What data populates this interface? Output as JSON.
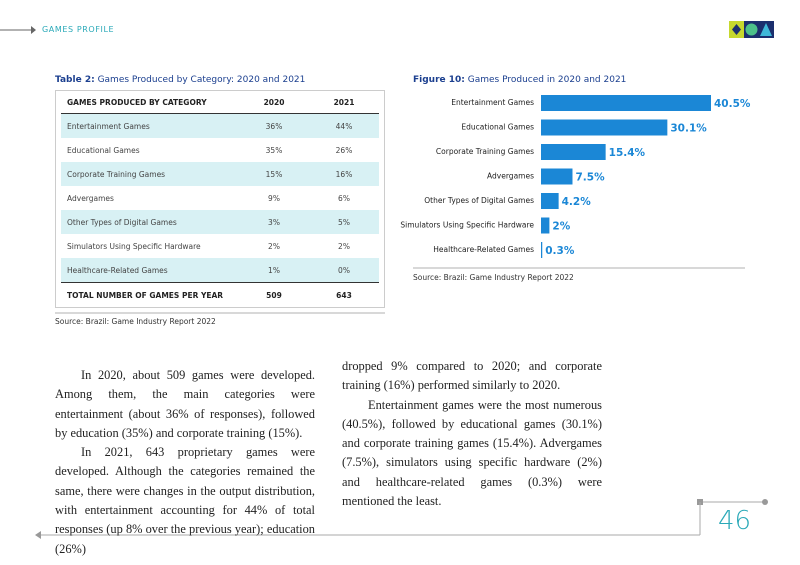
{
  "header": {
    "section": "GAMES PROFILE"
  },
  "table": {
    "label": "Table 2:",
    "title": "Games Produced by Category: 2020 and 2021",
    "columns": [
      "GAMES PRODUCED BY CATEGORY",
      "2020",
      "2021"
    ],
    "rows": [
      [
        "Entertainment Games",
        "36%",
        "44%"
      ],
      [
        "Educational Games",
        "35%",
        "26%"
      ],
      [
        "Corporate Training Games",
        "15%",
        "16%"
      ],
      [
        "Advergames",
        "9%",
        "6%"
      ],
      [
        "Other Types of Digital Games",
        "3%",
        "5%"
      ],
      [
        "Simulators Using Specific Hardware",
        "2%",
        "2%"
      ],
      [
        "Healthcare-Related Games",
        "1%",
        "0%"
      ]
    ],
    "total": [
      "TOTAL NUMBER OF GAMES PER YEAR",
      "509",
      "643"
    ],
    "source": "Source: Brazil: Game Industry Report 2022"
  },
  "chart_data": {
    "type": "bar",
    "orientation": "horizontal",
    "label": "Figure 10:",
    "title": "Games Produced in 2020 and 2021",
    "categories": [
      "Entertainment Games",
      "Educational Games",
      "Corporate Training Games",
      "Advergames",
      "Other Types of Digital Games",
      "Simulators Using Specific Hardware",
      "Healthcare-Related Games"
    ],
    "values": [
      40.5,
      30.1,
      15.4,
      7.5,
      4.2,
      2,
      0.3
    ],
    "value_labels": [
      "40.5%",
      "30.1%",
      "15.4%",
      "7.5%",
      "4.2%",
      "2%",
      "0.3%"
    ],
    "color": "#1b87d6",
    "source": "Source: Brazil: Game Industry Report 2022"
  },
  "body": {
    "left": [
      "In 2020, about 509 games were developed. Among them, the main categories were entertainment (about 36% of responses), followed by education (35%) and corporate training (15%).",
      "In 2021, 643 proprietary games were developed. Although the categories remained the same, there were changes in the output distribution, with entertainment accounting for 44% of total responses (up 8% over the previous year); education (26%)"
    ],
    "right": [
      "dropped 9% compared to 2020; and corporate training (16%) performed similarly to 2020.",
      "Entertainment games were the most numerous (40.5%), followed by educational games (30.1%) and corporate training games (15.4%). Advergames (7.5%), simulators using specific hardware (2%) and healthcare-related games (0.3%) were mentioned the least."
    ]
  },
  "page_number": "46"
}
